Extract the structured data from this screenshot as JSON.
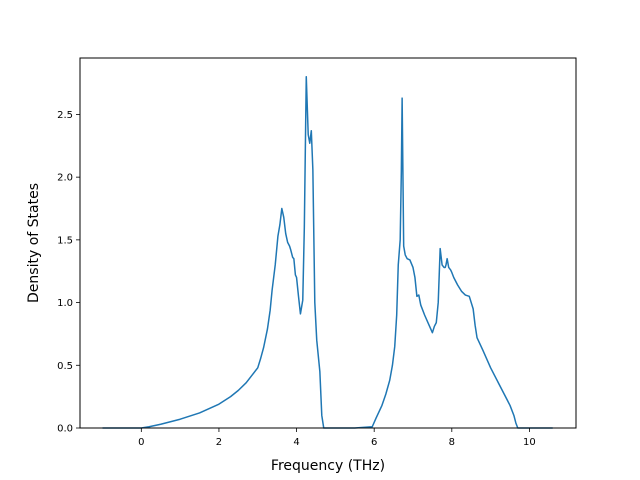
{
  "chart_data": {
    "type": "line",
    "title": "",
    "xlabel": "Frequency (THz)",
    "ylabel": "Density of States",
    "xlim": [
      -1.58,
      11.2
    ],
    "ylim": [
      0,
      2.95
    ],
    "xticks": [
      0,
      2,
      4,
      6,
      8,
      10
    ],
    "xtick_labels": [
      "0",
      "2",
      "4",
      "6",
      "8",
      "10"
    ],
    "yticks": [
      0.0,
      0.5,
      1.0,
      1.5,
      2.0,
      2.5
    ],
    "ytick_labels": [
      "0.0",
      "0.5",
      "1.0",
      "1.5",
      "2.0",
      "2.5"
    ],
    "grid": false,
    "line_color": "#1f77b4",
    "series": [
      {
        "x": [
          -1.0,
          -0.5,
          0.0,
          0.2,
          0.5,
          1.0,
          1.5,
          2.0,
          2.3,
          2.5,
          2.7,
          2.85,
          3.0,
          3.07,
          3.15,
          3.25,
          3.32,
          3.37,
          3.45,
          3.52,
          3.57,
          3.62,
          3.67,
          3.72,
          3.77,
          3.82,
          3.85,
          3.9,
          3.93,
          3.97,
          4.0,
          4.05,
          4.1,
          4.16,
          4.2,
          4.25,
          4.3,
          4.34,
          4.38,
          4.42,
          4.47,
          4.52,
          4.6,
          4.65,
          4.7,
          4.74,
          5.0,
          5.5,
          5.95,
          6.05,
          6.2,
          6.3,
          6.4,
          6.47,
          6.53,
          6.58,
          6.62,
          6.67,
          6.7,
          6.72,
          6.76,
          6.8,
          6.85,
          6.92,
          7.0,
          7.05,
          7.1,
          7.15,
          7.2,
          7.3,
          7.4,
          7.5,
          7.55,
          7.6,
          7.65,
          7.7,
          7.75,
          7.8,
          7.83,
          7.85,
          7.88,
          7.92,
          7.97,
          8.0,
          8.05,
          8.15,
          8.25,
          8.35,
          8.45,
          8.5,
          8.55,
          8.6,
          8.65,
          8.8,
          9.0,
          9.2,
          9.4,
          9.5,
          9.6,
          9.65,
          9.7,
          10.0,
          10.3,
          10.6
        ],
        "y": [
          0.0,
          0.0,
          0.0,
          0.01,
          0.03,
          0.07,
          0.12,
          0.19,
          0.25,
          0.3,
          0.36,
          0.42,
          0.48,
          0.55,
          0.64,
          0.79,
          0.94,
          1.1,
          1.3,
          1.53,
          1.62,
          1.75,
          1.68,
          1.55,
          1.48,
          1.45,
          1.42,
          1.36,
          1.35,
          1.22,
          1.2,
          1.05,
          0.91,
          1.02,
          1.6,
          2.8,
          2.34,
          2.27,
          2.37,
          2.06,
          1.0,
          0.7,
          0.45,
          0.1,
          0.0,
          0.0,
          0.0,
          0.0,
          0.01,
          0.08,
          0.18,
          0.27,
          0.38,
          0.5,
          0.65,
          0.9,
          1.3,
          1.5,
          2.05,
          2.63,
          1.45,
          1.38,
          1.35,
          1.34,
          1.28,
          1.2,
          1.05,
          1.06,
          0.98,
          0.9,
          0.83,
          0.76,
          0.81,
          0.84,
          1.0,
          1.43,
          1.3,
          1.28,
          1.28,
          1.3,
          1.35,
          1.28,
          1.26,
          1.24,
          1.2,
          1.14,
          1.09,
          1.06,
          1.05,
          1.0,
          0.95,
          0.82,
          0.72,
          0.62,
          0.48,
          0.36,
          0.24,
          0.18,
          0.1,
          0.04,
          0.0,
          0.0,
          0.0,
          0.0
        ]
      }
    ]
  }
}
